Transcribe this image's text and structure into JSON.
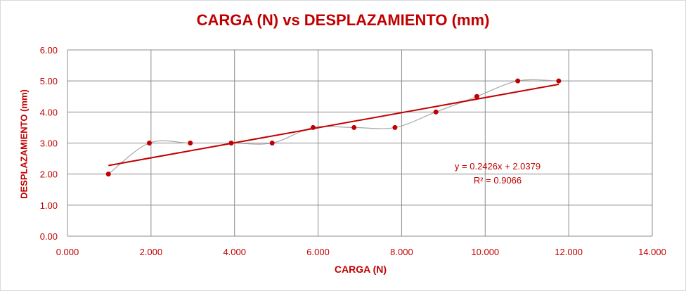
{
  "chart_data": {
    "type": "scatter",
    "title": "CARGA (N) vs DESPLAZAMIENTO (mm)",
    "xlabel": "CARGA (N)",
    "ylabel": "DESPLAZAMIENTO (mm)",
    "xlim": [
      0,
      14
    ],
    "ylim": [
      0,
      6
    ],
    "x_ticks": [
      "0.000",
      "2.000",
      "4.000",
      "6.000",
      "8.000",
      "10.000",
      "12.000",
      "14.000"
    ],
    "y_ticks": [
      "0.00",
      "1.00",
      "2.00",
      "3.00",
      "4.00",
      "5.00",
      "6.00"
    ],
    "grid": true,
    "smoothed_line": true,
    "series": [
      {
        "x": [
          0.98,
          1.96,
          2.94,
          3.92,
          4.9,
          5.88,
          6.86,
          7.84,
          8.82,
          9.8,
          10.78,
          11.76
        ],
        "y": [
          2.0,
          3.0,
          3.0,
          3.0,
          3.0,
          3.5,
          3.5,
          3.5,
          4.0,
          4.5,
          5.0,
          5.0
        ]
      }
    ],
    "trendline": {
      "slope": 0.2426,
      "intercept": 2.0379,
      "equation": "y = 0.2426x + 2.0379",
      "r2": "R² = 0.9066"
    },
    "colors": {
      "marker": "#c00000",
      "trendline": "#c00000",
      "smooth_line": "#a6a6a6",
      "grid": "#8c8c8c",
      "text": "#c00000"
    }
  }
}
